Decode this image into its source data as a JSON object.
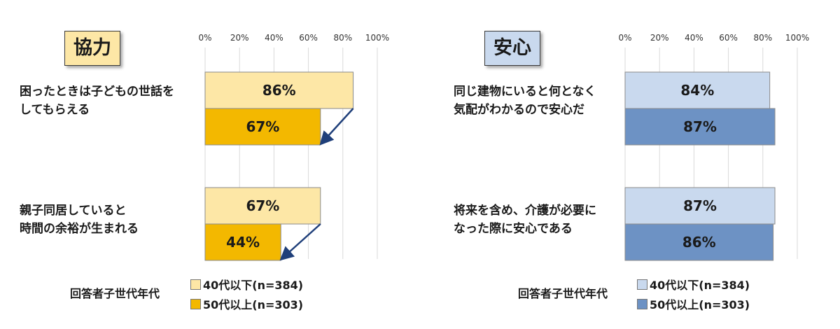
{
  "chart_data": [
    {
      "type": "bar",
      "orientation": "horizontal",
      "title": "協力",
      "categories": [
        [
          "困ったときは子どもの世話を",
          "してもらえる"
        ],
        [
          "親子同居していると",
          "時間の余裕が生まれる"
        ]
      ],
      "x_ticks": [
        "0%",
        "20%",
        "40%",
        "60%",
        "80%",
        "100%"
      ],
      "xlim": [
        0,
        100
      ],
      "grid": true,
      "series": [
        {
          "name": "40代以下(n=384)",
          "values": [
            86,
            67
          ],
          "labels": [
            "86%",
            "67%"
          ],
          "color": "#fde7a6"
        },
        {
          "name": "50代以上(n=303)",
          "values": [
            67,
            44
          ],
          "labels": [
            "67%",
            "44%"
          ],
          "color": "#f3b800"
        }
      ],
      "arrows": true,
      "arrow_color": "#1f3f7a",
      "legend_caption": "回答者子世代年代",
      "legend_position": "bottom"
    },
    {
      "type": "bar",
      "orientation": "horizontal",
      "title": "安心",
      "categories": [
        [
          "同じ建物にいると何となく",
          "気配がわかるので安心だ"
        ],
        [
          "将来を含め、介護が必要に",
          "なった際に安心である"
        ]
      ],
      "x_ticks": [
        "0%",
        "20%",
        "40%",
        "60%",
        "80%",
        "100%"
      ],
      "xlim": [
        0,
        100
      ],
      "grid": true,
      "series": [
        {
          "name": "40代以下(n=384)",
          "values": [
            84,
            87
          ],
          "labels": [
            "84%",
            "87%"
          ],
          "color": "#c9d9ee"
        },
        {
          "name": "50代以上(n=303)",
          "values": [
            87,
            86
          ],
          "labels": [
            "87%",
            "86%"
          ],
          "color": "#6d92c4"
        }
      ],
      "arrows": false,
      "legend_caption": "回答者子世代年代",
      "legend_position": "bottom"
    }
  ]
}
